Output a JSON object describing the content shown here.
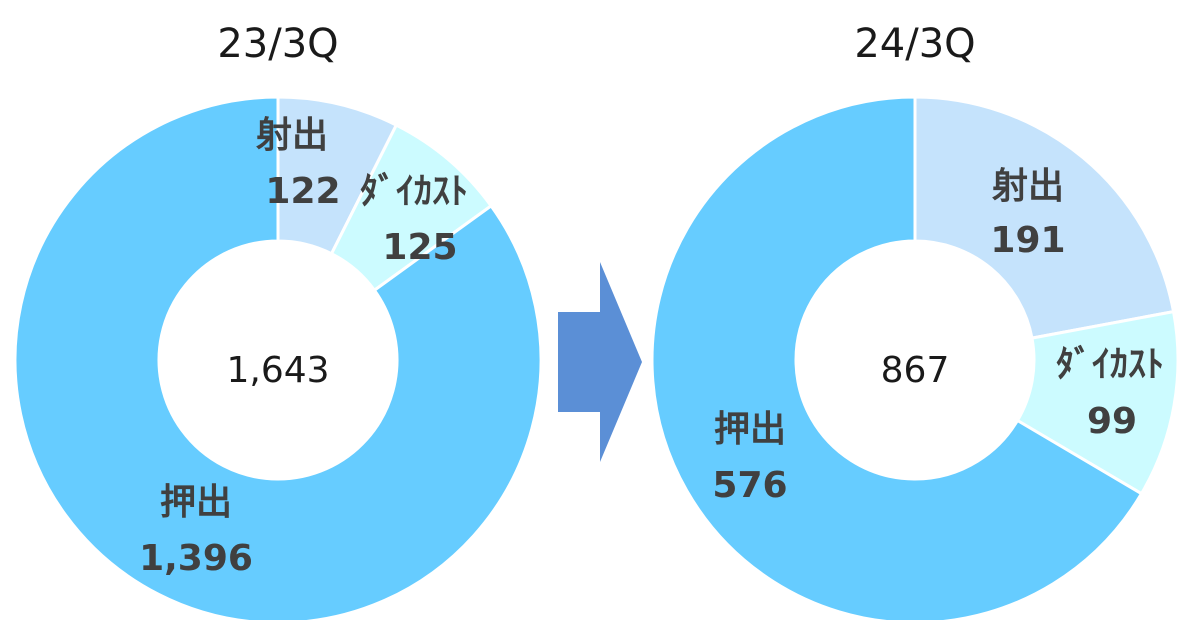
{
  "chart_data": [
    {
      "type": "pie",
      "title": "23/3Q",
      "total": "1,643",
      "slices": [
        {
          "name": "射出",
          "value": 122,
          "display": "122",
          "color": "#c5e3fc"
        },
        {
          "name": "ﾀﾞｲｶｽﾄ",
          "value": 125,
          "display": "125",
          "color": "#ccfbff"
        },
        {
          "name": "押出",
          "value": 1396,
          "display": "1,396",
          "color": "#66ccff"
        }
      ]
    },
    {
      "type": "pie",
      "title": "24/3Q",
      "total": "867",
      "slices": [
        {
          "name": "射出",
          "value": 191,
          "display": "191",
          "color": "#c5e3fc"
        },
        {
          "name": "ﾀﾞｲｶｽﾄ",
          "value": 99,
          "display": "99",
          "color": "#ccfbff"
        },
        {
          "name": "押出",
          "value": 576,
          "display": "576",
          "color": "#66ccff"
        }
      ]
    }
  ],
  "arrow": {
    "color": "#5b8fd6",
    "icon": "right-arrow-icon"
  }
}
